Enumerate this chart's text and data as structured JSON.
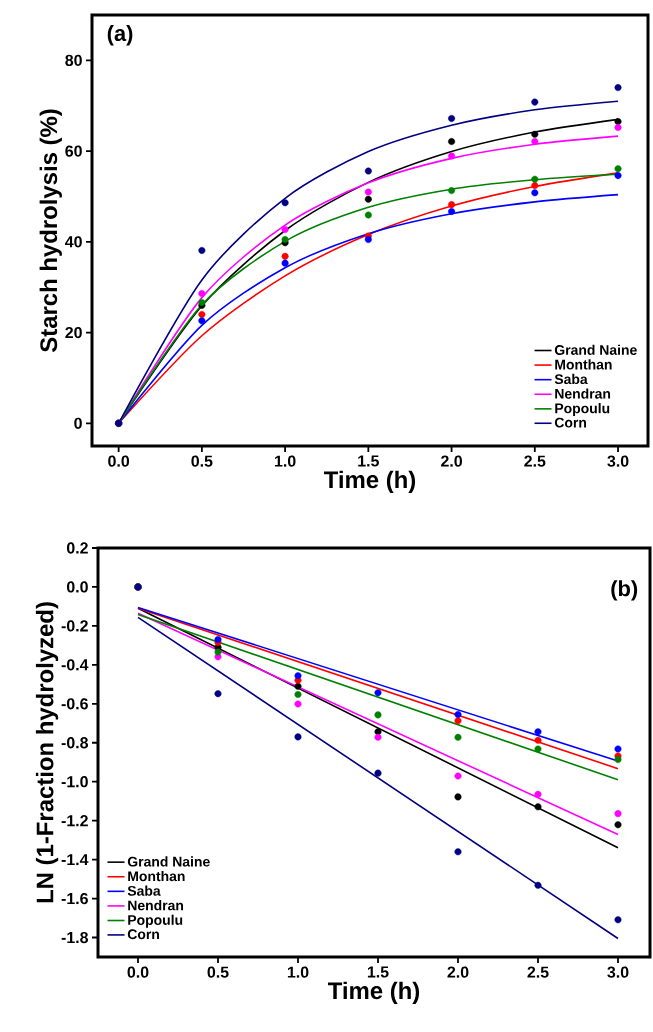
{
  "chart_data": [
    {
      "type": "scatter",
      "xlabel": "Time (h)",
      "ylabel": "Starch hydrolysis (%)",
      "annotations": [
        "(a)"
      ],
      "xlim": [
        -0.16,
        3.18
      ],
      "ylim": [
        -5,
        90
      ],
      "xticks": [
        {
          "value": 0,
          "label": "0.0"
        },
        {
          "value": 0.5,
          "label": "0.5"
        },
        {
          "value": 1,
          "label": "1.0"
        },
        {
          "value": 1.5,
          "label": "1.5"
        },
        {
          "value": 2,
          "label": "2.0"
        },
        {
          "value": 2.5,
          "label": "2.5"
        },
        {
          "value": 3,
          "label": "3.0"
        }
      ],
      "yticks": [
        0,
        20,
        40,
        60,
        80
      ],
      "legend": "bottom right",
      "series": [
        {
          "type": "scatter",
          "marker": "circle",
          "color": "#000000",
          "x": [
            0,
            0.5,
            1,
            1.5,
            2,
            2.5,
            3
          ],
          "values": [
            0,
            26.0,
            39.8,
            49.4,
            62.1,
            63.7,
            66.5
          ]
        },
        {
          "type": "scatter",
          "marker": "circle",
          "color": "#ff0000",
          "x": [
            0,
            0.5,
            1,
            1.5,
            2,
            2.5
          ],
          "values": [
            0,
            24.0,
            36.8,
            41.3,
            48.2,
            52.4
          ]
        },
        {
          "type": "scatter",
          "marker": "circle",
          "color": "#0000ff",
          "x": [
            0,
            0.5,
            1,
            1.5,
            2,
            2.5,
            3
          ],
          "values": [
            0,
            22.6,
            35.3,
            40.5,
            46.7,
            50.8,
            54.6
          ]
        },
        {
          "type": "scatter",
          "marker": "circle",
          "color": "#ff00ff",
          "x": [
            0,
            0.5,
            1,
            1.5,
            2,
            2.5,
            3
          ],
          "values": [
            0,
            28.6,
            42.7,
            51.0,
            58.9,
            62.1,
            65.2
          ]
        },
        {
          "type": "scatter",
          "marker": "circle",
          "color": "#008000",
          "x": [
            0,
            0.5,
            1,
            1.5,
            2,
            2.5,
            3
          ],
          "values": [
            0,
            26.6,
            40.5,
            45.9,
            51.3,
            53.8,
            56.1
          ]
        },
        {
          "type": "scatter",
          "marker": "circle",
          "color": "#000080",
          "x": [
            0,
            0.5,
            1,
            1.5,
            2,
            2.5,
            3
          ],
          "values": [
            0,
            38.1,
            48.6,
            55.6,
            67.2,
            70.8,
            74.0
          ]
        },
        {
          "type": "line",
          "name": "Grand Naine",
          "color": "#000000",
          "x": [
            0,
            0.5,
            1,
            1.5,
            2,
            2.5,
            3
          ],
          "values": [
            0,
            25.9,
            42.5,
            53.1,
            59.9,
            64.2,
            67.0
          ]
        },
        {
          "type": "line",
          "name": "Monthan",
          "color": "#ff0000",
          "x": [
            0,
            0.5,
            1,
            1.5,
            2,
            2.5,
            3
          ],
          "values": [
            0,
            19.3,
            32.5,
            41.6,
            47.9,
            52.2,
            55.2
          ]
        },
        {
          "type": "line",
          "name": "Saba",
          "color": "#0000ff",
          "x": [
            0,
            0.5,
            1,
            1.5,
            2,
            2.5,
            3
          ],
          "values": [
            0,
            21.6,
            34.3,
            41.8,
            46.2,
            48.8,
            50.4
          ]
        },
        {
          "type": "line",
          "name": "Nendran",
          "color": "#ff00ff",
          "x": [
            0,
            0.5,
            1,
            1.5,
            2,
            2.5,
            3
          ],
          "values": [
            0,
            27.7,
            43.7,
            53.0,
            58.4,
            61.5,
            63.3
          ]
        },
        {
          "type": "line",
          "name": "Popoulu",
          "color": "#008000",
          "x": [
            0,
            0.5,
            1,
            1.5,
            2,
            2.5,
            3
          ],
          "values": [
            0,
            26.1,
            40.1,
            47.6,
            51.6,
            53.7,
            54.9
          ]
        },
        {
          "type": "line",
          "name": "Corn",
          "color": "#000080",
          "x": [
            0,
            0.5,
            1,
            1.5,
            2,
            2.5,
            3
          ],
          "values": [
            0,
            31.6,
            49.6,
            59.9,
            65.7,
            69.1,
            71.0
          ]
        }
      ]
    },
    {
      "type": "scatter",
      "xlabel": "Time (h)",
      "ylabel": "LN (1-Fraction hydrolyzed)",
      "annotations": [
        "(b)"
      ],
      "xlim": [
        -0.25,
        3.2
      ],
      "ylim": [
        -1.9,
        0.2
      ],
      "xticks": [
        {
          "value": 0,
          "label": "0.0"
        },
        {
          "value": 0.5,
          "label": "0.5"
        },
        {
          "value": 1,
          "label": "1.0"
        },
        {
          "value": 1.5,
          "label": "1.5"
        },
        {
          "value": 2,
          "label": "2.0"
        },
        {
          "value": 2.5,
          "label": "2.5"
        },
        {
          "value": 3,
          "label": "3.0"
        }
      ],
      "yticks": [
        {
          "value": 0.2,
          "label": "0.2"
        },
        {
          "value": 0,
          "label": "0.0"
        },
        {
          "value": -0.2,
          "label": "-0.2"
        },
        {
          "value": -0.4,
          "label": "-0.4"
        },
        {
          "value": -0.6,
          "label": "-0.6"
        },
        {
          "value": -0.8,
          "label": "-0.8"
        },
        {
          "value": -1.0,
          "label": "-1.0"
        },
        {
          "value": -1.2,
          "label": "-1.2"
        },
        {
          "value": -1.4,
          "label": "-1.4"
        },
        {
          "value": -1.6,
          "label": "-1.6"
        },
        {
          "value": -1.8,
          "label": "-1.8"
        }
      ],
      "legend": "bottom left",
      "series": [
        {
          "type": "scatter",
          "marker": "circle",
          "color": "#000000",
          "x": [
            0,
            0.5,
            1,
            1.5,
            2,
            2.5,
            3
          ],
          "values": [
            0,
            -0.31,
            -0.51,
            -0.744,
            -1.078,
            -1.129,
            -1.221
          ]
        },
        {
          "type": "scatter",
          "marker": "circle",
          "color": "#ff0000",
          "x": [
            0,
            0.5,
            1,
            2,
            2.5,
            3
          ],
          "values": [
            0,
            -0.285,
            -0.479,
            -0.687,
            -0.787,
            -0.868
          ]
        },
        {
          "type": "scatter",
          "marker": "circle",
          "color": "#0000ff",
          "x": [
            0,
            0.5,
            1,
            1.5,
            2,
            2.5,
            3
          ],
          "values": [
            0,
            -0.27,
            -0.456,
            -0.543,
            -0.655,
            -0.744,
            -0.832
          ]
        },
        {
          "type": "scatter",
          "marker": "circle",
          "color": "#ff00ff",
          "x": [
            0,
            0.5,
            1,
            1.5,
            2,
            2.5,
            3
          ],
          "values": [
            0,
            -0.359,
            -0.601,
            -0.772,
            -0.971,
            -1.065,
            -1.164
          ]
        },
        {
          "type": "scatter",
          "marker": "circle",
          "color": "#008000",
          "x": [
            0,
            0.5,
            1,
            1.5,
            2,
            2.5,
            3
          ],
          "values": [
            0,
            -0.334,
            -0.552,
            -0.657,
            -0.772,
            -0.832,
            -0.886
          ]
        },
        {
          "type": "scatter",
          "marker": "circle",
          "color": "#000080",
          "x": [
            0,
            0.5,
            1,
            1.5,
            2,
            2.5,
            3
          ],
          "values": [
            0,
            -0.548,
            -0.77,
            -0.956,
            -1.36,
            -1.532,
            -1.709
          ]
        },
        {
          "type": "line",
          "name": "Grand Naine",
          "color": "#000000",
          "x": [
            0,
            3
          ],
          "values": [
            -0.109,
            -1.339
          ]
        },
        {
          "type": "line",
          "name": "Monthan",
          "color": "#ff0000",
          "x": [
            0,
            3
          ],
          "values": [
            -0.109,
            -0.933
          ]
        },
        {
          "type": "line",
          "name": "Saba",
          "color": "#0000ff",
          "x": [
            0,
            3
          ],
          "values": [
            -0.105,
            -0.894
          ]
        },
        {
          "type": "line",
          "name": "Nendran",
          "color": "#ff00ff",
          "x": [
            0,
            3
          ],
          "values": [
            -0.135,
            -1.271
          ]
        },
        {
          "type": "line",
          "name": "Popoulu",
          "color": "#008000",
          "x": [
            0,
            3
          ],
          "values": [
            -0.141,
            -0.99
          ]
        },
        {
          "type": "line",
          "name": "Corn",
          "color": "#000080",
          "x": [
            0,
            3
          ],
          "values": [
            -0.156,
            -1.805
          ]
        }
      ]
    }
  ]
}
